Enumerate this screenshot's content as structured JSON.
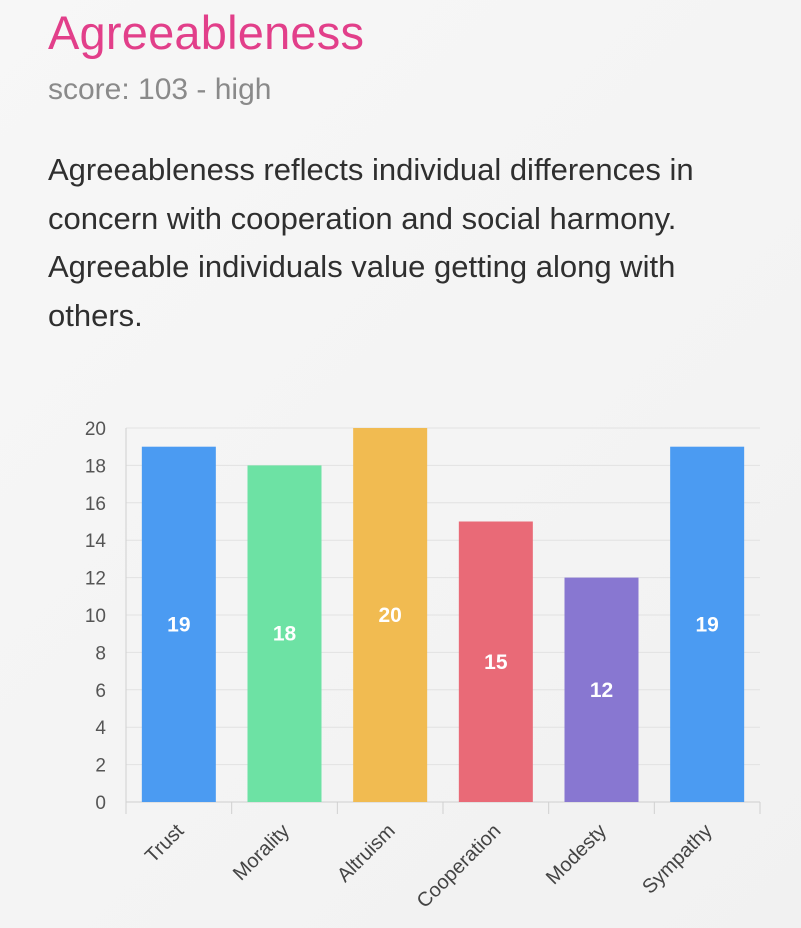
{
  "header": {
    "title": "Agreeableness",
    "score_line": "score: 103 - high"
  },
  "description": "Agreeableness reflects individual differences in concern with cooperation and social harmony. Agreeable individuals value getting along with others.",
  "chart_data": {
    "type": "bar",
    "title": "",
    "xlabel": "",
    "ylabel": "",
    "categories": [
      "Trust",
      "Morality",
      "Altruism",
      "Cooperation",
      "Modesty",
      "Sympathy"
    ],
    "values": [
      19,
      18,
      20,
      15,
      12,
      19
    ],
    "bar_colors": [
      "#4b9bf2",
      "#6de2a4",
      "#f1bb51",
      "#e96a77",
      "#8877d1",
      "#4b9bf2"
    ],
    "data_labels": [
      "19",
      "18",
      "20",
      "15",
      "12",
      "19"
    ],
    "ylim": [
      0,
      20
    ],
    "yticks": [
      "0",
      "2",
      "4",
      "6",
      "8",
      "10",
      "12",
      "14",
      "16",
      "18",
      "20"
    ],
    "grid": true,
    "legend": "none"
  }
}
